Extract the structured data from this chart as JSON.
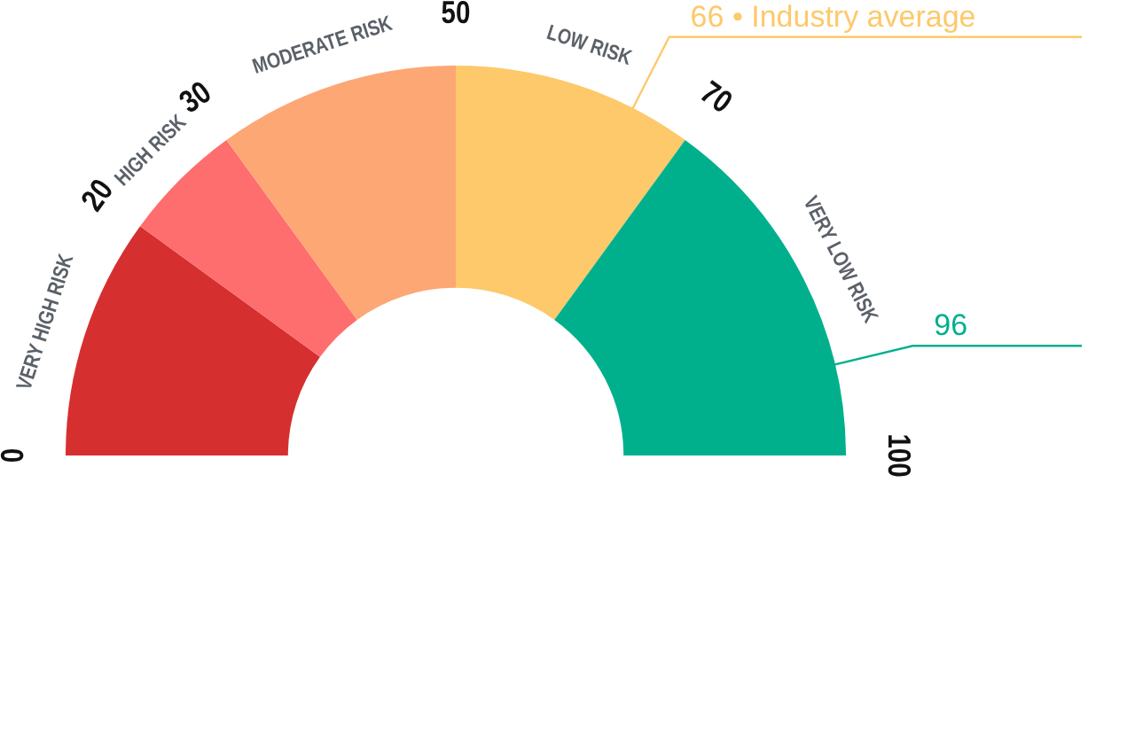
{
  "chart_data": {
    "type": "donut",
    "categories": [
      "VERY HIGH RISK",
      "HIGH RISK",
      "MODERATE RISK",
      "LOW RISK",
      "VERY LOW RISK"
    ],
    "values": [
      20,
      10,
      20,
      20,
      30
    ],
    "colors": [
      "#d62f2f",
      "#fe6e6e",
      "#fda775",
      "#fdc96b",
      "#00b08c"
    ],
    "annotations": [
      "0",
      "20",
      "30",
      "50",
      "70",
      "100",
      {
        "text": "66 • Industry average",
        "x": "LOW RISK"
      },
      {
        "text": "96",
        "x": "VERY LOW RISK"
      }
    ]
  }
}
